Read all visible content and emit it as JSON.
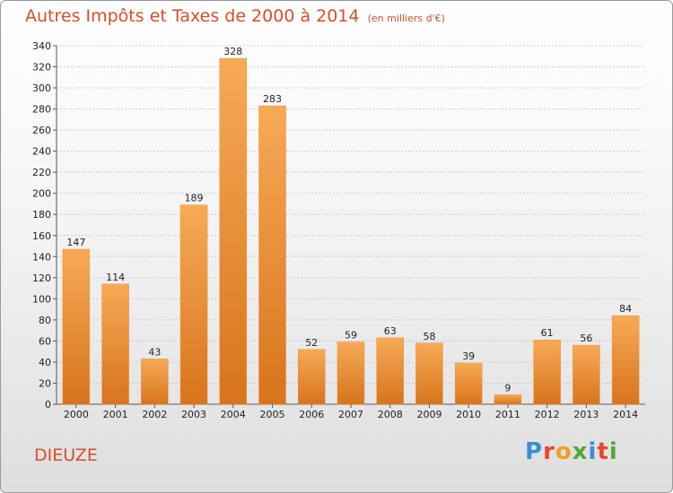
{
  "title": "Autres Impôts et Taxes de 2000 à 2014",
  "unit_label": "(en milliers d'€)",
  "location": "DIEUZE",
  "brand": "Proxiti",
  "colors": {
    "title": "#d2502a",
    "bar_top": "#f7aa56",
    "bar_bottom": "#d8741d",
    "brand_letters": [
      "#3a8fd6",
      "#e8452c",
      "#f0a020",
      "#52a83a",
      "#3a8fd6",
      "#e8452c",
      "#52a83a"
    ]
  },
  "chart_data": {
    "type": "bar",
    "categories": [
      "2000",
      "2001",
      "2002",
      "2003",
      "2004",
      "2005",
      "2006",
      "2007",
      "2008",
      "2009",
      "2010",
      "2011",
      "2012",
      "2013",
      "2014"
    ],
    "values": [
      147,
      114,
      43,
      189,
      328,
      283,
      52,
      59,
      63,
      58,
      39,
      9,
      61,
      56,
      84
    ],
    "ylim": [
      0,
      340
    ],
    "yticks": [
      0,
      20,
      40,
      60,
      80,
      100,
      120,
      140,
      160,
      180,
      200,
      220,
      240,
      260,
      280,
      300,
      320,
      340
    ],
    "grid": true,
    "data_labels": true
  }
}
